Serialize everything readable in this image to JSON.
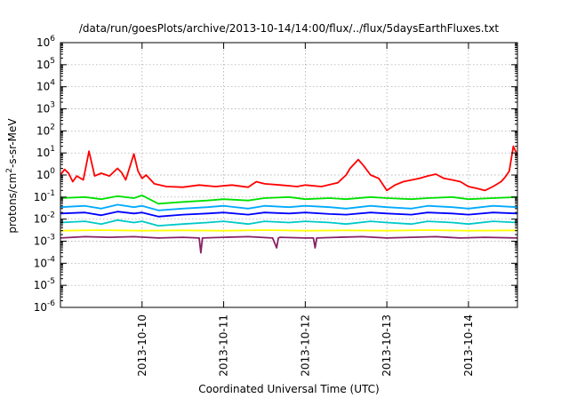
{
  "chart_data": {
    "type": "line",
    "title": "/data/run/goesPlots/archive/2013-10-14/14:00/flux/../flux/5daysEarthFluxes.txt",
    "xlabel": "Coordinated Universal Time (UTC)",
    "ylabel": {
      "prefix": "protons/cm",
      "sup": "2",
      "suffix": "-s-sr-MeV"
    },
    "yscale": "log",
    "ylim": [
      1e-06,
      1000000.0
    ],
    "xlim": [
      9.0,
      14.6
    ],
    "grid": true,
    "legend": "none",
    "xticks": [
      {
        "label": "2013-10-10",
        "value": 10
      },
      {
        "label": "2013-10-11",
        "value": 11
      },
      {
        "label": "2013-10-12",
        "value": 12
      },
      {
        "label": "2013-10-13",
        "value": 13
      },
      {
        "label": "2013-10-14",
        "value": 14
      }
    ],
    "yticks": [
      {
        "exp": "-6",
        "value": 1e-06
      },
      {
        "exp": "-5",
        "value": 1e-05
      },
      {
        "exp": "-4",
        "value": 0.0001
      },
      {
        "exp": "-3",
        "value": 0.001
      },
      {
        "exp": "-2",
        "value": 0.01
      },
      {
        "exp": "-1",
        "value": 0.1
      },
      {
        "exp": "0",
        "value": 1
      },
      {
        "exp": "1",
        "value": 10.0
      },
      {
        "exp": "2",
        "value": 100.0
      },
      {
        "exp": "3",
        "value": 1000.0
      },
      {
        "exp": "4",
        "value": 10000.0
      },
      {
        "exp": "5",
        "value": 100000.0
      },
      {
        "exp": "6",
        "value": 1000000.0
      }
    ],
    "series": [
      {
        "color": "#ff0000",
        "x": [
          9.0,
          9.05,
          9.1,
          9.15,
          9.2,
          9.28,
          9.35,
          9.42,
          9.5,
          9.6,
          9.7,
          9.75,
          9.8,
          9.9,
          9.95,
          10.0,
          10.05,
          10.15,
          10.3,
          10.5,
          10.7,
          10.9,
          11.1,
          11.3,
          11.4,
          11.5,
          11.7,
          11.9,
          12.0,
          12.2,
          12.4,
          12.5,
          12.55,
          12.65,
          12.72,
          12.8,
          12.9,
          13.0,
          13.1,
          13.2,
          13.4,
          13.5,
          13.6,
          13.7,
          13.8,
          13.9,
          14.0,
          14.1,
          14.2,
          14.3,
          14.4,
          14.45,
          14.5,
          14.55,
          14.6
        ],
        "y": [
          1.0,
          1.8,
          1.2,
          0.5,
          0.9,
          0.6,
          12,
          0.9,
          1.2,
          0.9,
          2.0,
          1.3,
          0.6,
          9,
          1.5,
          0.7,
          1.0,
          0.4,
          0.3,
          0.28,
          0.35,
          0.3,
          0.35,
          0.28,
          0.5,
          0.4,
          0.35,
          0.3,
          0.35,
          0.3,
          0.45,
          1.0,
          2.0,
          5.0,
          2.5,
          1.0,
          0.7,
          0.2,
          0.35,
          0.5,
          0.7,
          0.9,
          1.1,
          0.7,
          0.6,
          0.5,
          0.3,
          0.25,
          0.2,
          0.3,
          0.5,
          0.8,
          1.5,
          20,
          8
        ]
      },
      {
        "color": "#00e000",
        "x": [
          9.0,
          9.3,
          9.5,
          9.7,
          9.9,
          10.0,
          10.2,
          10.5,
          10.8,
          11.0,
          11.3,
          11.5,
          11.8,
          12.0,
          12.3,
          12.5,
          12.8,
          13.0,
          13.3,
          13.5,
          13.8,
          14.0,
          14.3,
          14.6
        ],
        "y": [
          0.09,
          0.1,
          0.08,
          0.11,
          0.09,
          0.12,
          0.05,
          0.06,
          0.07,
          0.08,
          0.07,
          0.09,
          0.1,
          0.08,
          0.09,
          0.08,
          0.1,
          0.09,
          0.08,
          0.09,
          0.1,
          0.08,
          0.09,
          0.1
        ]
      },
      {
        "color": "#00aaff",
        "x": [
          9.0,
          9.3,
          9.5,
          9.7,
          9.9,
          10.0,
          10.2,
          10.5,
          10.8,
          11.0,
          11.3,
          11.5,
          11.8,
          12.0,
          12.3,
          12.5,
          12.8,
          13.0,
          13.3,
          13.5,
          13.8,
          14.0,
          14.3,
          14.6
        ],
        "y": [
          0.035,
          0.04,
          0.03,
          0.045,
          0.035,
          0.04,
          0.025,
          0.03,
          0.035,
          0.04,
          0.03,
          0.04,
          0.035,
          0.04,
          0.035,
          0.03,
          0.04,
          0.035,
          0.03,
          0.04,
          0.035,
          0.03,
          0.04,
          0.035
        ]
      },
      {
        "color": "#0000ff",
        "x": [
          9.0,
          9.3,
          9.5,
          9.7,
          9.9,
          10.0,
          10.2,
          10.5,
          10.8,
          11.0,
          11.3,
          11.5,
          11.8,
          12.0,
          12.3,
          12.5,
          12.8,
          13.0,
          13.3,
          13.5,
          13.8,
          14.0,
          14.3,
          14.6
        ],
        "y": [
          0.018,
          0.02,
          0.015,
          0.022,
          0.018,
          0.02,
          0.013,
          0.016,
          0.018,
          0.02,
          0.016,
          0.02,
          0.018,
          0.02,
          0.017,
          0.016,
          0.02,
          0.018,
          0.016,
          0.02,
          0.018,
          0.016,
          0.02,
          0.018
        ]
      },
      {
        "color": "#00c8c8",
        "x": [
          9.0,
          9.3,
          9.5,
          9.7,
          9.9,
          10.0,
          10.2,
          10.5,
          10.8,
          11.0,
          11.3,
          11.5,
          11.8,
          12.0,
          12.3,
          12.5,
          12.8,
          13.0,
          13.3,
          13.5,
          13.8,
          14.0,
          14.3,
          14.6
        ],
        "y": [
          0.007,
          0.008,
          0.006,
          0.009,
          0.007,
          0.008,
          0.005,
          0.006,
          0.007,
          0.008,
          0.006,
          0.008,
          0.007,
          0.008,
          0.007,
          0.006,
          0.008,
          0.007,
          0.006,
          0.008,
          0.007,
          0.006,
          0.008,
          0.007
        ]
      },
      {
        "color": "#ffff00",
        "x": [
          9.0,
          9.5,
          10.0,
          10.5,
          11.0,
          11.5,
          12.0,
          12.5,
          13.0,
          13.5,
          14.0,
          14.6
        ],
        "y": [
          0.003,
          0.0032,
          0.003,
          0.0031,
          0.003,
          0.0032,
          0.003,
          0.0031,
          0.003,
          0.0032,
          0.003,
          0.0031
        ]
      },
      {
        "color": "#882266",
        "x": [
          9.0,
          9.3,
          9.6,
          9.9,
          10.2,
          10.5,
          10.7,
          10.72,
          10.74,
          11.0,
          11.3,
          11.6,
          11.65,
          11.67,
          11.69,
          12.0,
          12.1,
          12.12,
          12.14,
          12.4,
          12.7,
          13.0,
          13.3,
          13.6,
          13.9,
          14.2,
          14.6
        ],
        "y": [
          0.0014,
          0.0016,
          0.0015,
          0.0016,
          0.0014,
          0.0015,
          0.0014,
          0.0003,
          0.0014,
          0.0015,
          0.0016,
          0.0014,
          0.0005,
          0.0014,
          0.0015,
          0.0014,
          0.0014,
          0.0005,
          0.0014,
          0.0015,
          0.0016,
          0.0014,
          0.0015,
          0.0016,
          0.0014,
          0.0015,
          0.0014
        ]
      }
    ]
  }
}
